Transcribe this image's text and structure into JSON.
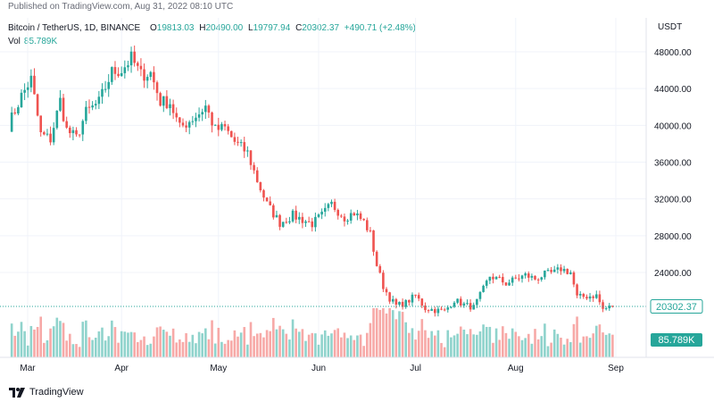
{
  "published": "Published on TradingView.com, Aug 31, 2022 08:10 UTC",
  "legend": {
    "symbol": "Bitcoin / TetherUS, 1D, BINANCE",
    "open_label": "O",
    "open": "19813.03",
    "high_label": "H",
    "high": "20490.00",
    "low_label": "L",
    "low": "19797.94",
    "close_label": "C",
    "close": "20302.37",
    "change": "+490.71 (+2.48%)",
    "vol_label": "Vol",
    "vol": "85.789K"
  },
  "footer": {
    "brand": "TradingView"
  },
  "colors": {
    "up": "#26a69a",
    "down": "#ef5350",
    "up_volume": "#8fd3cc",
    "down_volume": "#f7a9a7",
    "price_tag": "#ffffff",
    "volume_tag": "#26a69a"
  },
  "chart_data": {
    "type": "candlestick",
    "currency": "USDT",
    "y_ticks": [
      "48000.00",
      "44000.00",
      "40000.00",
      "36000.00",
      "32000.00",
      "28000.00",
      "24000.00"
    ],
    "ylim": [
      15800,
      50000
    ],
    "x_ticks": [
      {
        "label": "Mar",
        "day": 0
      },
      {
        "label": "Apr",
        "day": 31
      },
      {
        "label": "May",
        "day": 61
      },
      {
        "label": "Jun",
        "day": 92
      },
      {
        "label": "Jul",
        "day": 122
      },
      {
        "label": "Aug",
        "day": 153
      },
      {
        "label": "Sep",
        "day": 184
      }
    ],
    "current_price": 20302.37,
    "current_price_label": "20302.37",
    "current_volume_label": "85.789K",
    "close_anchors": [
      [
        -4,
        40000
      ],
      [
        0,
        43200
      ],
      [
        3,
        45000
      ],
      [
        6,
        39000
      ],
      [
        9,
        38500
      ],
      [
        12,
        42700
      ],
      [
        14,
        39500
      ],
      [
        17,
        38600
      ],
      [
        20,
        41400
      ],
      [
        24,
        42500
      ],
      [
        28,
        45800
      ],
      [
        31,
        46000
      ],
      [
        34,
        47300
      ],
      [
        37,
        45500
      ],
      [
        40,
        45700
      ],
      [
        43,
        42600
      ],
      [
        46,
        42500
      ],
      [
        49,
        39700
      ],
      [
        52,
        40500
      ],
      [
        55,
        41300
      ],
      [
        57,
        42100
      ],
      [
        60,
        39500
      ],
      [
        63,
        39700
      ],
      [
        66,
        38200
      ],
      [
        70,
        37000
      ],
      [
        73,
        34000
      ],
      [
        76,
        31400
      ],
      [
        80,
        29400
      ],
      [
        84,
        30200
      ],
      [
        90,
        29300
      ],
      [
        93,
        30200
      ],
      [
        96,
        31400
      ],
      [
        100,
        30000
      ],
      [
        103,
        30500
      ],
      [
        106,
        29500
      ],
      [
        108,
        28200
      ],
      [
        110,
        24800
      ],
      [
        112,
        22500
      ],
      [
        114,
        21200
      ],
      [
        116,
        20400
      ],
      [
        119,
        20700
      ],
      [
        122,
        21500
      ],
      [
        125,
        20100
      ],
      [
        128,
        19900
      ],
      [
        131,
        19800
      ],
      [
        134,
        21000
      ],
      [
        137,
        20500
      ],
      [
        140,
        20200
      ],
      [
        142,
        21500
      ],
      [
        145,
        23600
      ],
      [
        148,
        23200
      ],
      [
        150,
        22800
      ],
      [
        153,
        23300
      ],
      [
        156,
        23700
      ],
      [
        159,
        23300
      ],
      [
        162,
        23800
      ],
      [
        165,
        24000
      ],
      [
        167,
        24400
      ],
      [
        170,
        24000
      ],
      [
        172,
        21300
      ],
      [
        175,
        21400
      ],
      [
        178,
        21500
      ],
      [
        180,
        20000
      ],
      [
        183,
        20300
      ]
    ],
    "volume_ylim": [
      0,
      1000
    ]
  }
}
